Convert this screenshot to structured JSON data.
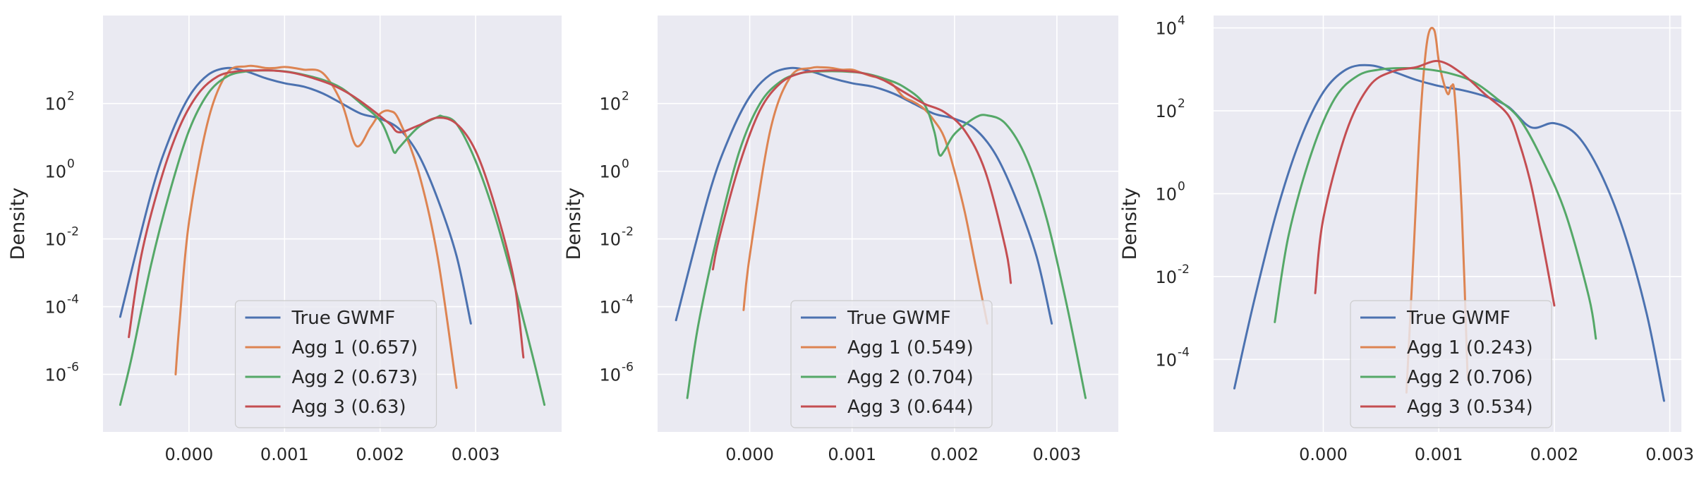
{
  "colors": {
    "background": "#eaeaf2",
    "grid": "#ffffff",
    "true_gwmf": "#4c72b0",
    "agg1": "#dd8452",
    "agg2": "#55a868",
    "agg3": "#c44e52"
  },
  "chart_data": [
    {
      "type": "line",
      "title": "",
      "xlabel": "",
      "ylabel": "Density",
      "yscale": "log",
      "xlim": [
        -0.0009,
        0.0039
      ],
      "ylim_exp": [
        -7.7,
        4.6
      ],
      "xticks": [
        {
          "value": 0.0,
          "label": "0.000"
        },
        {
          "value": 0.001,
          "label": "0.001"
        },
        {
          "value": 0.002,
          "label": "0.002"
        },
        {
          "value": 0.003,
          "label": "0.003"
        }
      ],
      "yticks": [
        {
          "exp": 2,
          "base": "10",
          "sup": "2"
        },
        {
          "exp": 0,
          "base": "10",
          "sup": "0"
        },
        {
          "exp": -2,
          "base": "10",
          "sup": "-2"
        },
        {
          "exp": -4,
          "base": "10",
          "sup": "-4"
        },
        {
          "exp": -6,
          "base": "10",
          "sup": "-6"
        }
      ],
      "legend": {
        "position": "lower center"
      },
      "series": [
        {
          "name": "True GWMF",
          "color_key": "true_gwmf",
          "x": [
            -0.00072,
            -0.0004,
            -0.0002,
            0.0,
            0.0002,
            0.0004,
            0.0006,
            0.0008,
            0.001,
            0.0012,
            0.0014,
            0.0016,
            0.0018,
            0.002,
            0.0022,
            0.0024,
            0.0026,
            0.0028,
            0.00295
          ],
          "log10_y": [
            -4.3,
            -0.7,
            1.0,
            2.2,
            2.85,
            3.05,
            2.95,
            2.75,
            2.6,
            2.5,
            2.3,
            2.0,
            1.7,
            1.55,
            1.25,
            0.5,
            -0.8,
            -2.5,
            -4.5
          ]
        },
        {
          "name": "Agg 1 (0.657)",
          "color_key": "agg1",
          "x": [
            -0.00014,
            -0.0001,
            0.0,
            0.0002,
            0.0004,
            0.0006,
            0.0007,
            0.0008,
            0.0009,
            0.001,
            0.0011,
            0.0012,
            0.0014,
            0.0016,
            0.00175,
            0.0019,
            0.002,
            0.0021,
            0.0022,
            0.0024,
            0.0026,
            0.0028
          ],
          "log10_y": [
            -6.0,
            -4.5,
            -1.5,
            1.5,
            2.9,
            3.1,
            3.1,
            3.05,
            3.05,
            3.08,
            3.05,
            3.0,
            2.9,
            2.0,
            0.75,
            1.3,
            1.7,
            1.78,
            1.5,
            0.0,
            -2.5,
            -6.4
          ]
        },
        {
          "name": "Agg 2 (0.673)",
          "color_key": "agg2",
          "x": [
            -0.00072,
            -0.0006,
            -0.0004,
            -0.0002,
            0.0,
            0.0002,
            0.0004,
            0.0006,
            0.0008,
            0.001,
            0.0012,
            0.0014,
            0.0016,
            0.0018,
            0.002,
            0.0021,
            0.00215,
            0.0022,
            0.0024,
            0.0026,
            0.00265,
            0.0028,
            0.003,
            0.0032,
            0.0034,
            0.0036,
            0.00372
          ],
          "log10_y": [
            -6.9,
            -5.5,
            -2.8,
            -0.6,
            1.2,
            2.3,
            2.8,
            2.95,
            2.98,
            2.95,
            2.85,
            2.7,
            2.45,
            2.0,
            1.5,
            0.9,
            0.55,
            0.7,
            1.3,
            1.6,
            1.62,
            1.4,
            0.3,
            -1.3,
            -3.3,
            -5.5,
            -6.9
          ]
        },
        {
          "name": "Agg 3 (0.63)",
          "color_key": "agg3",
          "x": [
            -0.00063,
            -0.0005,
            -0.0003,
            -0.0001,
            0.0001,
            0.0003,
            0.0005,
            0.0007,
            0.0009,
            0.0011,
            0.0013,
            0.0015,
            0.0017,
            0.0019,
            0.0021,
            0.0022,
            0.0024,
            0.0026,
            0.0028,
            0.003,
            0.0032,
            0.0034,
            0.0035
          ],
          "log10_y": [
            -4.9,
            -2.5,
            -0.3,
            1.3,
            2.3,
            2.8,
            2.95,
            2.98,
            2.97,
            2.9,
            2.75,
            2.55,
            2.25,
            1.85,
            1.4,
            1.15,
            1.35,
            1.58,
            1.4,
            0.6,
            -1.0,
            -3.2,
            -5.5
          ]
        }
      ]
    },
    {
      "type": "line",
      "title": "",
      "xlabel": "",
      "ylabel": "Density",
      "yscale": "log",
      "xlim": [
        -0.0009,
        0.0036
      ],
      "ylim_exp": [
        -7.7,
        4.6
      ],
      "xticks": [
        {
          "value": 0.0,
          "label": "0.000"
        },
        {
          "value": 0.001,
          "label": "0.001"
        },
        {
          "value": 0.002,
          "label": "0.002"
        },
        {
          "value": 0.003,
          "label": "0.003"
        }
      ],
      "yticks": [
        {
          "exp": 2,
          "base": "10",
          "sup": "2"
        },
        {
          "exp": 0,
          "base": "10",
          "sup": "0"
        },
        {
          "exp": -2,
          "base": "10",
          "sup": "-2"
        },
        {
          "exp": -4,
          "base": "10",
          "sup": "-4"
        },
        {
          "exp": -6,
          "base": "10",
          "sup": "-6"
        }
      ],
      "legend": {
        "position": "lower center"
      },
      "series": [
        {
          "name": "True GWMF",
          "color_key": "true_gwmf",
          "x": [
            -0.00072,
            -0.0004,
            -0.0002,
            0.0,
            0.0002,
            0.0004,
            0.0006,
            0.0008,
            0.001,
            0.0012,
            0.0014,
            0.0016,
            0.0018,
            0.002,
            0.0022,
            0.0024,
            0.0026,
            0.0028,
            0.00295
          ],
          "log10_y": [
            -4.4,
            -0.7,
            1.0,
            2.2,
            2.85,
            3.05,
            2.95,
            2.75,
            2.6,
            2.5,
            2.3,
            2.0,
            1.7,
            1.55,
            1.25,
            0.5,
            -0.8,
            -2.5,
            -4.5
          ]
        },
        {
          "name": "Agg 1 (0.549)",
          "color_key": "agg1",
          "x": [
            -6e-05,
            0.0,
            0.0002,
            0.0004,
            0.0006,
            0.0007,
            0.0008,
            0.0009,
            0.001,
            0.0011,
            0.0012,
            0.0013,
            0.0014,
            0.0015,
            0.0016,
            0.0017,
            0.0018,
            0.0019,
            0.002,
            0.0021,
            0.0022,
            0.00232
          ],
          "log10_y": [
            -4.1,
            -2.5,
            1.2,
            2.8,
            3.05,
            3.07,
            3.05,
            3.0,
            3.0,
            2.9,
            2.8,
            2.75,
            2.55,
            2.2,
            2.05,
            1.85,
            1.5,
            1.0,
            0.0,
            -1.2,
            -2.7,
            -4.5
          ]
        },
        {
          "name": "Agg 2 (0.704)",
          "color_key": "agg2",
          "x": [
            -0.00061,
            -0.0005,
            -0.0003,
            -0.0001,
            0.0001,
            0.0003,
            0.0005,
            0.0007,
            0.0009,
            0.0011,
            0.0013,
            0.0015,
            0.0017,
            0.0018,
            0.00185,
            0.0019,
            0.002,
            0.0022,
            0.00232,
            0.0025,
            0.0027,
            0.0029,
            0.0031,
            0.00328
          ],
          "log10_y": [
            -6.7,
            -4.5,
            -1.7,
            0.6,
            2.0,
            2.65,
            2.9,
            2.95,
            2.95,
            2.9,
            2.75,
            2.5,
            2.0,
            1.2,
            0.5,
            0.6,
            1.1,
            1.58,
            1.65,
            1.4,
            0.4,
            -1.4,
            -4.0,
            -6.7
          ]
        },
        {
          "name": "Agg 3 (0.644)",
          "color_key": "agg3",
          "x": [
            -0.00036,
            -0.0003,
            -0.0001,
            0.0001,
            0.0003,
            0.0005,
            0.0007,
            0.0009,
            0.0011,
            0.0013,
            0.0015,
            0.0017,
            0.0019,
            0.0021,
            0.0023,
            0.0025,
            0.00255
          ],
          "log10_y": [
            -2.9,
            -2.0,
            0.2,
            1.8,
            2.6,
            2.9,
            2.97,
            2.97,
            2.9,
            2.7,
            2.35,
            2.0,
            1.75,
            1.2,
            0.0,
            -2.3,
            -3.3
          ]
        }
      ]
    },
    {
      "type": "line",
      "title": "",
      "xlabel": "",
      "ylabel": "Density",
      "yscale": "log",
      "xlim": [
        -0.00095,
        0.0031
      ],
      "ylim_exp": [
        -5.75,
        4.3
      ],
      "xticks": [
        {
          "value": 0.0,
          "label": "0.000"
        },
        {
          "value": 0.001,
          "label": "0.001"
        },
        {
          "value": 0.002,
          "label": "0.002"
        },
        {
          "value": 0.003,
          "label": "0.003"
        }
      ],
      "yticks": [
        {
          "exp": 4,
          "base": "10",
          "sup": "4"
        },
        {
          "exp": 2,
          "base": "10",
          "sup": "2"
        },
        {
          "exp": 0,
          "base": "10",
          "sup": "0"
        },
        {
          "exp": -2,
          "base": "10",
          "sup": "-2"
        },
        {
          "exp": -4,
          "base": "10",
          "sup": "-4"
        }
      ],
      "legend": {
        "position": "lower center"
      },
      "series": [
        {
          "name": "True GWMF",
          "color_key": "true_gwmf",
          "x": [
            -0.00077,
            -0.0006,
            -0.0004,
            -0.0002,
            0.0,
            0.0002,
            0.0004,
            0.0006,
            0.0008,
            0.001,
            0.0012,
            0.0014,
            0.0016,
            0.0018,
            0.002,
            0.0022,
            0.0024,
            0.0026,
            0.0028,
            0.00295
          ],
          "log10_y": [
            -4.7,
            -2.6,
            -0.4,
            1.3,
            2.45,
            3.0,
            3.1,
            2.95,
            2.75,
            2.6,
            2.5,
            2.35,
            2.1,
            1.6,
            1.7,
            1.4,
            0.5,
            -0.9,
            -2.9,
            -5.0
          ]
        },
        {
          "name": "Agg 1 (0.243)",
          "color_key": "agg1",
          "x": [
            0.00072,
            0.00078,
            0.00084,
            0.0009,
            0.00096,
            0.001,
            0.00104,
            0.00108,
            0.00111,
            0.00114,
            0.0012,
            0.00125
          ],
          "log10_y": [
            -4.8,
            -1.5,
            1.8,
            3.7,
            3.95,
            3.2,
            2.7,
            2.4,
            2.6,
            2.3,
            -0.5,
            -4.5
          ]
        },
        {
          "name": "Agg 2 (0.706)",
          "color_key": "agg2",
          "x": [
            -0.00042,
            -0.0003,
            -0.0001,
            0.0001,
            0.0003,
            0.0005,
            0.0007,
            0.0009,
            0.0011,
            0.0013,
            0.0015,
            0.0017,
            0.0019,
            0.0021,
            0.0023,
            0.00236
          ],
          "log10_y": [
            -3.1,
            -1.0,
            1.0,
            2.3,
            2.85,
            3.0,
            3.03,
            3.0,
            2.9,
            2.7,
            2.3,
            1.8,
            0.8,
            -0.5,
            -2.5,
            -3.5
          ]
        },
        {
          "name": "Agg 3 (0.534)",
          "color_key": "agg3",
          "x": [
            -7e-05,
            0.0,
            0.0002,
            0.0004,
            0.0006,
            0.0008,
            0.001,
            0.0012,
            0.0014,
            0.0016,
            0.0017,
            0.0018,
            0.0019,
            0.002
          ],
          "log10_y": [
            -2.4,
            -0.6,
            1.5,
            2.6,
            2.95,
            3.05,
            3.2,
            2.9,
            2.4,
            1.9,
            1.2,
            0.2,
            -1.2,
            -2.7
          ]
        }
      ]
    }
  ]
}
